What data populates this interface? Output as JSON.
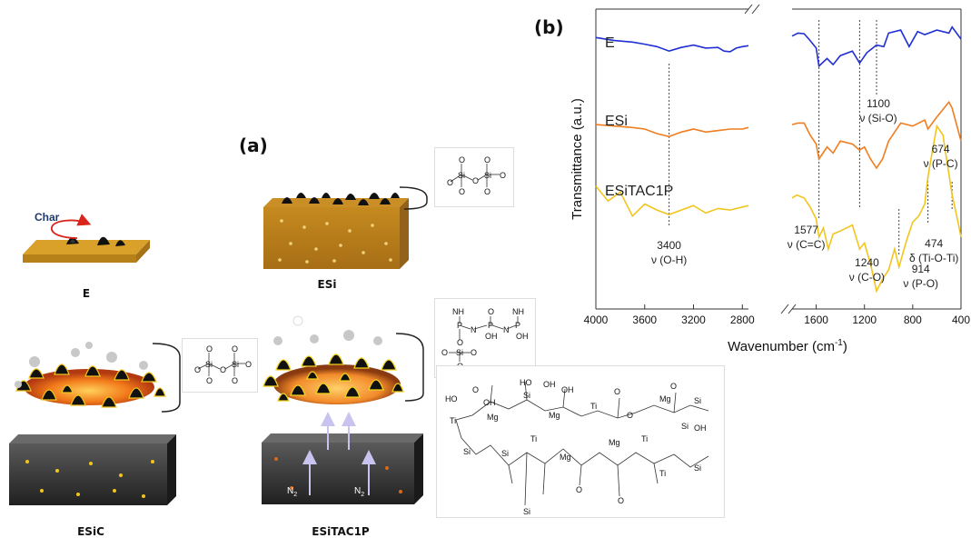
{
  "panel_a": {
    "label": "(a)",
    "char_label": "Char",
    "captions": {
      "E": "E",
      "ESi": "ESi",
      "ESiC": "ESiC",
      "ESiTAC1P": "ESiTAC1P"
    },
    "n2_label": "N",
    "n2_sub": "2",
    "chem_atoms": {
      "si": "Si",
      "o": "O",
      "p": "P",
      "n": "N",
      "nh": "NH",
      "oh": "OH",
      "ho": "HO",
      "mg": "Mg",
      "ti": "Ti"
    }
  },
  "panel_b": {
    "label": "(b)",
    "chart_data": {
      "type": "line",
      "xlabel": "Wavenumber (cm",
      "xlabel_sup": "-1",
      "xlabel_close": ")",
      "ylabel": "Transmittance (a.u.)",
      "x_ticks": [
        4000,
        3600,
        3200,
        2800,
        1600,
        1200,
        800,
        400
      ],
      "x_reversed": true,
      "axis_break": [
        2750,
        1800
      ],
      "series": [
        {
          "name": "E",
          "color": "#1f2fd4",
          "x": [
            4000,
            3850,
            3700,
            3600,
            3500,
            3400,
            3300,
            3200,
            3100,
            3000,
            2950,
            2900,
            2850,
            2800,
            2750,
            1800,
            1750,
            1700,
            1650,
            1600,
            1577,
            1510,
            1460,
            1400,
            1300,
            1240,
            1180,
            1100,
            1040,
            1000,
            900,
            830,
            760,
            700,
            600,
            500,
            474,
            400
          ],
          "y": [
            0.905,
            0.895,
            0.89,
            0.883,
            0.875,
            0.86,
            0.872,
            0.88,
            0.87,
            0.872,
            0.86,
            0.858,
            0.87,
            0.875,
            0.878,
            0.91,
            0.92,
            0.918,
            0.895,
            0.87,
            0.81,
            0.835,
            0.815,
            0.845,
            0.86,
            0.82,
            0.855,
            0.88,
            0.875,
            0.92,
            0.93,
            0.875,
            0.925,
            0.915,
            0.93,
            0.92,
            0.94,
            0.9
          ]
        },
        {
          "name": "ESi",
          "color": "#f07d1f",
          "x": [
            4000,
            3850,
            3700,
            3600,
            3500,
            3400,
            3300,
            3200,
            3100,
            3000,
            2900,
            2800,
            2750,
            1800,
            1750,
            1700,
            1650,
            1600,
            1577,
            1510,
            1460,
            1400,
            1300,
            1240,
            1200,
            1150,
            1100,
            1050,
            1000,
            900,
            800,
            700,
            674,
            600,
            500,
            474,
            400
          ],
          "y": [
            0.615,
            0.61,
            0.605,
            0.6,
            0.585,
            0.575,
            0.59,
            0.6,
            0.59,
            0.595,
            0.6,
            0.6,
            0.605,
            0.615,
            0.62,
            0.62,
            0.58,
            0.55,
            0.5,
            0.54,
            0.52,
            0.56,
            0.55,
            0.53,
            0.54,
            0.5,
            0.47,
            0.5,
            0.56,
            0.62,
            0.61,
            0.63,
            0.6,
            0.64,
            0.69,
            0.67,
            0.56
          ]
        },
        {
          "name": "ESiTAC1P",
          "color": "#f2c51d",
          "x": [
            4000,
            3900,
            3800,
            3700,
            3600,
            3500,
            3400,
            3300,
            3200,
            3100,
            3000,
            2900,
            2800,
            2750,
            1800,
            1760,
            1700,
            1650,
            1600,
            1577,
            1540,
            1500,
            1460,
            1400,
            1300,
            1240,
            1200,
            1150,
            1100,
            1050,
            1000,
            950,
            914,
            850,
            800,
            750,
            700,
            674,
            640,
            600,
            550,
            500,
            474,
            430,
            400
          ],
          "y": [
            0.41,
            0.36,
            0.39,
            0.31,
            0.35,
            0.33,
            0.315,
            0.33,
            0.345,
            0.32,
            0.335,
            0.33,
            0.34,
            0.345,
            0.37,
            0.38,
            0.37,
            0.34,
            0.3,
            0.24,
            0.27,
            0.2,
            0.25,
            0.26,
            0.28,
            0.2,
            0.22,
            0.15,
            0.06,
            0.1,
            0.13,
            0.2,
            0.14,
            0.23,
            0.29,
            0.31,
            0.35,
            0.44,
            0.52,
            0.61,
            0.58,
            0.45,
            0.38,
            0.3,
            0.24
          ]
        }
      ],
      "annotations": [
        {
          "x": 3400,
          "line1": "3400",
          "line2": "ν (O-H)"
        },
        {
          "x": 1577,
          "line1": "1577",
          "line2": "ν (C=C)"
        },
        {
          "x": 1240,
          "line1": "1240",
          "line2": "ν (C-O)"
        },
        {
          "x": 1100,
          "line1": "1100",
          "line2": "ν (Si-O)"
        },
        {
          "x": 914,
          "line1": "914",
          "line2": "ν (P-O)"
        },
        {
          "x": 674,
          "line1": "674",
          "line2": "ν (P-C)"
        },
        {
          "x": 474,
          "line1": "474",
          "line2": "δ (Ti-O-Ti)"
        }
      ]
    }
  }
}
